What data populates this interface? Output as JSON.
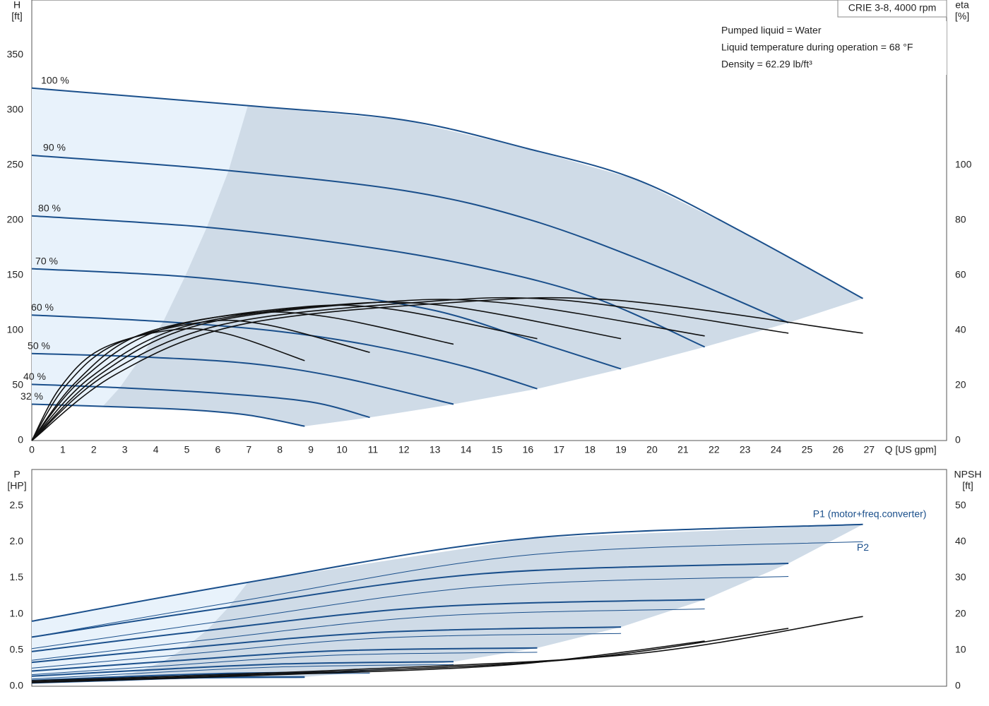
{
  "title": "CRIE 3-8, 4000 rpm",
  "info": [
    "Pumped liquid = Water",
    "Liquid temperature during operation = 68 °F",
    "Density = 62.29 lb/ft³"
  ],
  "chart_data": [
    {
      "type": "line",
      "y_label": "H",
      "y_unit": "[ft]",
      "y2_label": "eta",
      "y2_unit": "[%]",
      "x_label": "Q [US gpm]",
      "xlim": [
        0,
        29.5
      ],
      "xticks": [
        0,
        1,
        2,
        3,
        4,
        5,
        6,
        7,
        8,
        9,
        10,
        11,
        12,
        13,
        14,
        15,
        16,
        17,
        18,
        19,
        20,
        21,
        22,
        23,
        24,
        25,
        26,
        27
      ],
      "ylim": [
        0,
        400
      ],
      "yticks": [
        0,
        50,
        100,
        150,
        200,
        250,
        300,
        350
      ],
      "y2lim": [
        0,
        160
      ],
      "y2ticks": [
        0,
        20,
        40,
        60,
        80,
        100
      ],
      "grid": true,
      "series": [
        {
          "name": "100 %",
          "color": "#1a4f8b",
          "line_width": 2,
          "x": [
            0,
            7,
            12,
            16,
            19.5,
            23,
            26.8
          ],
          "values": [
            320,
            304,
            291,
            265,
            237,
            188,
            129
          ]
        },
        {
          "name": "90 %",
          "color": "#1a4f8b",
          "line_width": 2,
          "x": [
            0,
            6,
            12,
            16,
            20,
            24.4
          ],
          "values": [
            259,
            246,
            227,
            201,
            160,
            107
          ]
        },
        {
          "name": "80 %",
          "color": "#1a4f8b",
          "line_width": 2,
          "x": [
            0,
            5.5,
            10,
            14,
            18,
            21.7
          ],
          "values": [
            204,
            194,
            179,
            160,
            131,
            85
          ]
        },
        {
          "name": "70 %",
          "color": "#1a4f8b",
          "line_width": 2,
          "x": [
            0,
            4.9,
            9,
            13,
            16,
            19
          ],
          "values": [
            156,
            149,
            136,
            118,
            92,
            65
          ]
        },
        {
          "name": "60 %",
          "color": "#1a4f8b",
          "line_width": 2,
          "x": [
            0,
            4.2,
            8,
            11,
            14,
            16.3
          ],
          "values": [
            114,
            108,
            99,
            86,
            67,
            47
          ]
        },
        {
          "name": "50 %",
          "color": "#1a4f8b",
          "line_width": 2,
          "x": [
            0,
            3.5,
            7,
            10,
            13.6
          ],
          "values": [
            79,
            76,
            70,
            57,
            33
          ]
        },
        {
          "name": "40 %",
          "color": "#1a4f8b",
          "line_width": 2,
          "x": [
            0,
            2.8,
            6,
            9,
            10.9
          ],
          "values": [
            51,
            48,
            43,
            35,
            21
          ]
        },
        {
          "name": "32 %",
          "color": "#1a4f8b",
          "line_width": 2,
          "x": [
            0,
            2.3,
            5,
            7,
            8.8
          ],
          "values": [
            33,
            31,
            28,
            23,
            13
          ]
        },
        {
          "color": "#111111",
          "line_width": 1.6,
          "axis": "y2",
          "x": [
            0,
            2.7,
            6.7,
            13.4,
            18.8,
            26.8
          ],
          "values": [
            0,
            24,
            42,
            50,
            51,
            39
          ]
        },
        {
          "color": "#111111",
          "line_width": 1.6,
          "axis": "y2",
          "x": [
            0,
            2.4,
            6.1,
            12.2,
            17.1,
            24.4
          ],
          "values": [
            0,
            24,
            42,
            50,
            51,
            39
          ]
        },
        {
          "color": "#111111",
          "line_width": 1.6,
          "axis": "y2",
          "x": [
            0,
            2.2,
            5.4,
            10.9,
            15.2,
            21.7
          ],
          "values": [
            0,
            24,
            42,
            50,
            50,
            38
          ]
        },
        {
          "color": "#111111",
          "line_width": 1.6,
          "axis": "y2",
          "x": [
            0,
            1.9,
            4.8,
            9.5,
            13.3,
            19
          ],
          "values": [
            0,
            23,
            41,
            49,
            49,
            37
          ]
        },
        {
          "color": "#111111",
          "line_width": 1.6,
          "axis": "y2",
          "x": [
            0,
            1.6,
            4.1,
            8.2,
            11.4,
            16.3
          ],
          "values": [
            0,
            22,
            40,
            48,
            48,
            37
          ]
        },
        {
          "color": "#111111",
          "line_width": 1.6,
          "axis": "y2",
          "x": [
            0,
            1.4,
            3.4,
            6.8,
            9.5,
            13.6
          ],
          "values": [
            0,
            21,
            38,
            46,
            45,
            35
          ]
        },
        {
          "color": "#111111",
          "line_width": 1.6,
          "axis": "y2",
          "x": [
            0,
            1.1,
            2.7,
            5.5,
            7.6,
            10.9
          ],
          "values": [
            0,
            20,
            35,
            43,
            42,
            32
          ]
        },
        {
          "color": "#111111",
          "line_width": 1.6,
          "axis": "y2",
          "x": [
            0,
            0.9,
            2.2,
            4.4,
            6.2,
            8.8
          ],
          "values": [
            0,
            19,
            33,
            40,
            39,
            29
          ]
        }
      ]
    },
    {
      "type": "line",
      "y_label": "P",
      "y_unit": "[HP]",
      "y2_label": "NPSH",
      "y2_unit": "[ft]",
      "xlim": [
        0,
        29.5
      ],
      "ylim": [
        0,
        3.0
      ],
      "yticks": [
        {
          "value": 0,
          "label": "0.0"
        },
        0.5,
        {
          "value": 1,
          "label": "1.0"
        },
        1.5,
        {
          "value": 2,
          "label": "2.0"
        },
        2.5
      ],
      "y2lim": [
        0,
        60
      ],
      "y2ticks": [
        0,
        10,
        20,
        30,
        40,
        50
      ],
      "grid": true,
      "series": [
        {
          "name": "P1 (motor+freq.converter)",
          "color": "#1a4f8b",
          "line_width": 2,
          "x": [
            0,
            7,
            16.1,
            26.8
          ],
          "values": [
            0.9,
            1.44,
            2.05,
            2.24
          ]
        },
        {
          "color": "#1a4f8b",
          "line_width": 2,
          "x": [
            0,
            6.3,
            14.6,
            24.4
          ],
          "values": [
            0.68,
            1.09,
            1.56,
            1.7
          ]
        },
        {
          "color": "#1a4f8b",
          "line_width": 2,
          "x": [
            0,
            5.6,
            13,
            21.7
          ],
          "values": [
            0.48,
            0.77,
            1.1,
            1.2
          ]
        },
        {
          "color": "#1a4f8b",
          "line_width": 2,
          "x": [
            0,
            4.9,
            11.4,
            19
          ],
          "values": [
            0.33,
            0.53,
            0.75,
            0.82
          ]
        },
        {
          "color": "#1a4f8b",
          "line_width": 2,
          "x": [
            0,
            4.2,
            9.8,
            16.3
          ],
          "values": [
            0.21,
            0.34,
            0.49,
            0.53
          ]
        },
        {
          "color": "#1a4f8b",
          "line_width": 2,
          "x": [
            0,
            3.5,
            8.2,
            13.6
          ],
          "values": [
            0.14,
            0.22,
            0.31,
            0.34
          ]
        },
        {
          "color": "#1a4f8b",
          "line_width": 2,
          "x": [
            0,
            2.8,
            6.5,
            10.9
          ],
          "values": [
            0.08,
            0.13,
            0.18,
            0.2
          ]
        },
        {
          "color": "#1a4f8b",
          "line_width": 2,
          "x": [
            0,
            2.3,
            5.3,
            8.8
          ],
          "values": [
            0.05,
            0.09,
            0.12,
            0.13
          ]
        },
        {
          "name": "P2",
          "color": "#1a4f8b",
          "line_width": 1,
          "x": [
            0,
            7,
            16.1,
            26.8
          ],
          "values": [
            0.68,
            1.2,
            1.82,
            2.0
          ]
        },
        {
          "color": "#1a4f8b",
          "line_width": 1,
          "x": [
            0,
            6.3,
            14.6,
            24.4
          ],
          "values": [
            0.52,
            0.91,
            1.38,
            1.52
          ]
        },
        {
          "color": "#1a4f8b",
          "line_width": 1,
          "x": [
            0,
            5.6,
            13,
            21.7
          ],
          "values": [
            0.36,
            0.64,
            0.97,
            1.07
          ]
        },
        {
          "color": "#1a4f8b",
          "line_width": 1,
          "x": [
            0,
            4.9,
            11.4,
            19
          ],
          "values": [
            0.25,
            0.44,
            0.67,
            0.73
          ]
        },
        {
          "color": "#1a4f8b",
          "line_width": 1,
          "x": [
            0,
            4.2,
            9.8,
            16.3
          ],
          "values": [
            0.16,
            0.28,
            0.43,
            0.47
          ]
        },
        {
          "color": "#1a4f8b",
          "line_width": 1,
          "x": [
            0,
            3.5,
            8.2,
            13.6
          ],
          "values": [
            0.1,
            0.18,
            0.27,
            0.3
          ]
        },
        {
          "color": "#1a4f8b",
          "line_width": 1,
          "x": [
            0,
            2.8,
            6.5,
            10.9
          ],
          "values": [
            0.06,
            0.11,
            0.16,
            0.18
          ]
        },
        {
          "color": "#1a4f8b",
          "line_width": 1,
          "x": [
            0,
            2.3,
            5.3,
            8.8
          ],
          "values": [
            0.04,
            0.07,
            0.11,
            0.12
          ]
        },
        {
          "color": "#111111",
          "line_width": 1.6,
          "axis": "y2",
          "x": [
            0,
            10,
            19.5,
            26.8
          ],
          "values": [
            1.5,
            4.5,
            9,
            19.3
          ]
        },
        {
          "color": "#111111",
          "line_width": 1.6,
          "axis": "y2",
          "x": [
            0,
            9,
            17.5,
            24.4
          ],
          "values": [
            1.2,
            3.8,
            7.5,
            16
          ]
        },
        {
          "color": "#111111",
          "line_width": 1.6,
          "axis": "y2",
          "x": [
            0,
            8,
            15.5,
            21.7
          ],
          "values": [
            1,
            3.2,
            6,
            12.5
          ]
        }
      ]
    }
  ]
}
